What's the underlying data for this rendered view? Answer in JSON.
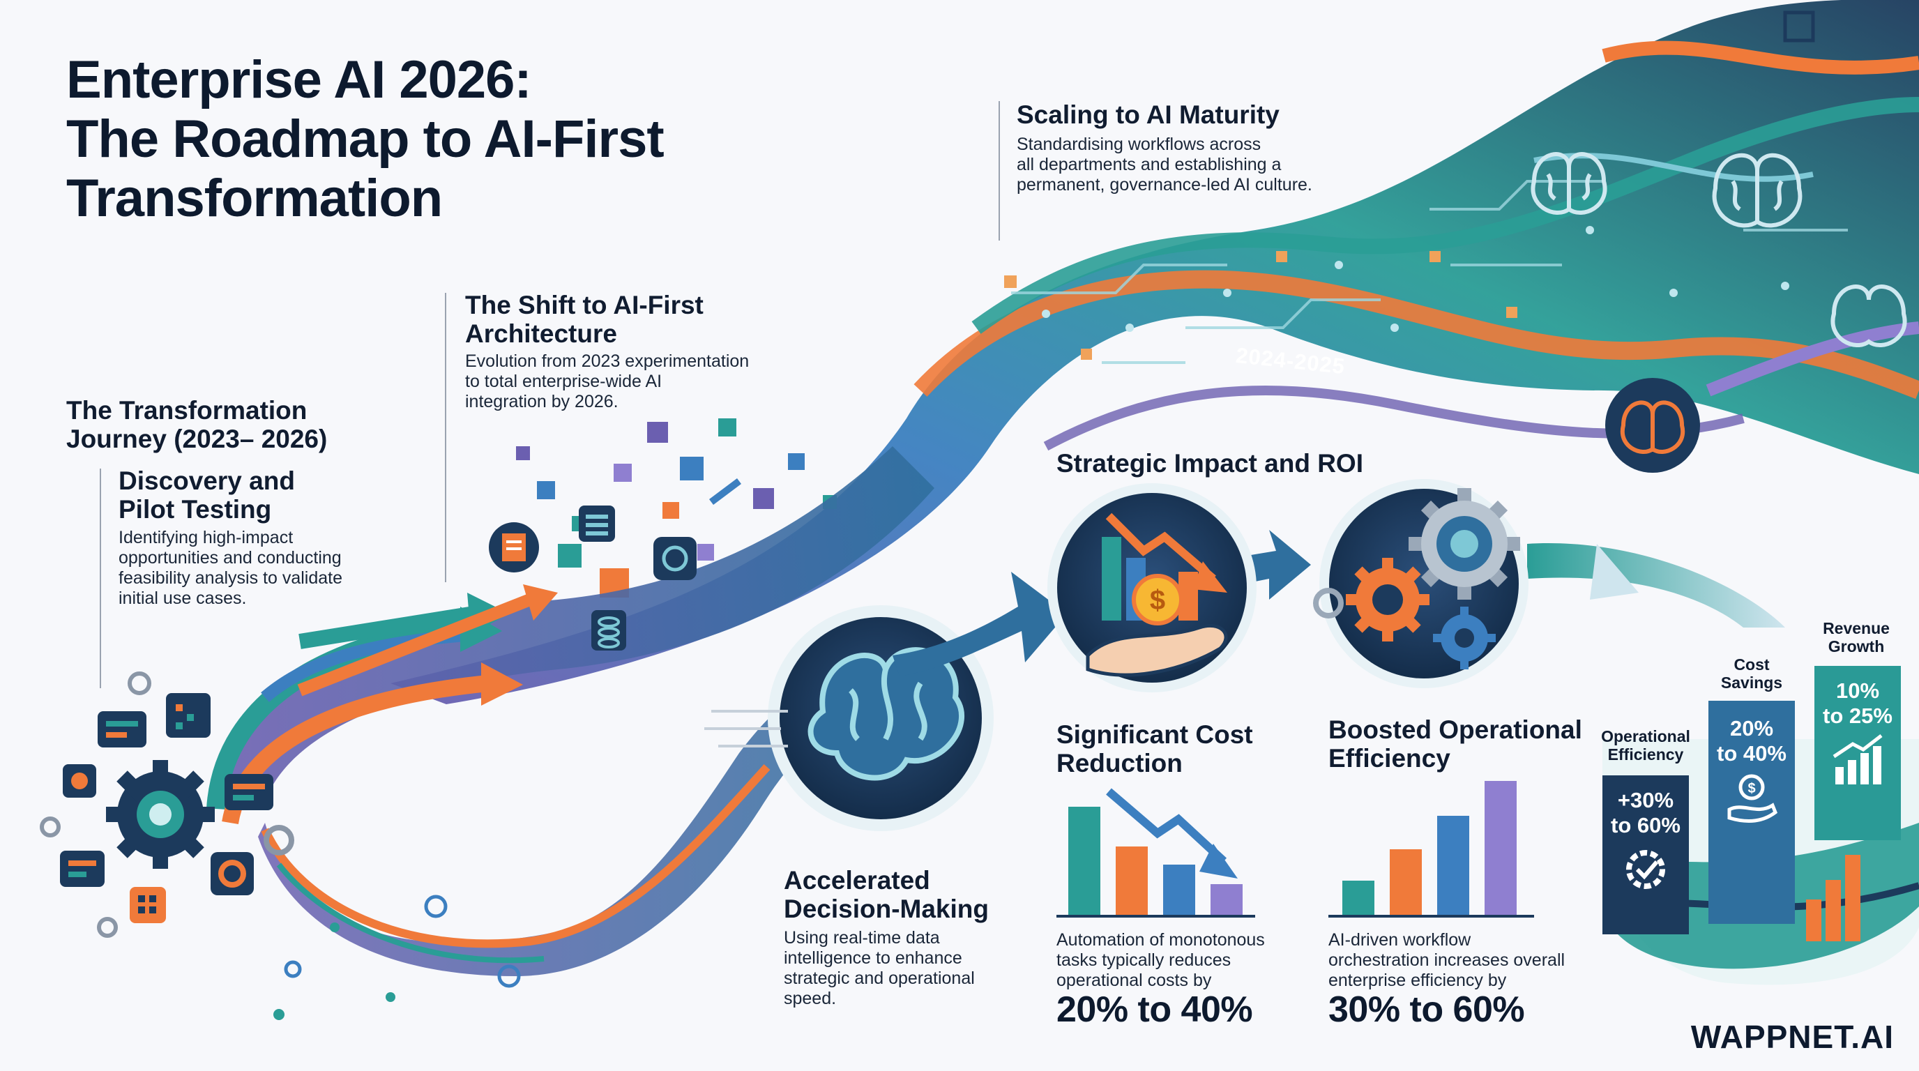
{
  "title": {
    "line1": "Enterprise AI 2026:",
    "line2": "The Roadmap to AI-First",
    "line3": "Transformation"
  },
  "journey": {
    "heading_line1": "The Transformation",
    "heading_line2": "Journey (2023– 2026)",
    "discovery": {
      "title_line1": "Discovery and",
      "title_line2": "Pilot Testing",
      "desc_line1": "Identifying high-impact",
      "desc_line2": "opportunities and conducting",
      "desc_line3": "feasibility analysis to validate",
      "desc_line4": "initial use cases."
    },
    "shift": {
      "title_line1": "The Shift to AI-First",
      "title_line2": "Architecture",
      "desc_line1": "Evolution from 2023 experimentation",
      "desc_line2": "to total enterprise-wide AI",
      "desc_line3": "integration by 2026."
    },
    "scaling": {
      "title": "Scaling to AI Maturity",
      "desc_line1": "Standardising workflows across",
      "desc_line2": "all departments and establishing a",
      "desc_line3": "permanent, governance-led AI culture."
    },
    "year_label": "2024-2025"
  },
  "impact": {
    "heading": "Strategic Impact and ROI",
    "decision": {
      "title_line1": "Accelerated",
      "title_line2": "Decision-Making",
      "desc_line1": "Using real-time data",
      "desc_line2": "intelligence to enhance",
      "desc_line3": "strategic and operational",
      "desc_line4": "speed."
    },
    "cost": {
      "title_line1": "Significant Cost",
      "title_line2": "Reduction",
      "desc_line1": "Automation of monotonous",
      "desc_line2": "tasks typically reduces",
      "desc_line3": "operational costs by",
      "value": "20% to 40%"
    },
    "efficiency": {
      "title_line1": "Boosted Operational",
      "title_line2": "Efficiency",
      "desc_line1": "AI-driven workflow",
      "desc_line2": "orchestration increases overall",
      "desc_line3": "enterprise efficiency by",
      "value": "30% to 60%"
    }
  },
  "metrics": [
    {
      "label_line1": "Operational",
      "label_line2": "Efficiency",
      "val_line1": "+30%",
      "val_line2": "to 60%",
      "color": "#1c3a5c",
      "icon": "gear-check-icon"
    },
    {
      "label_line1": "Cost",
      "label_line2": "Savings",
      "val_line1": "20%",
      "val_line2": "to 40%",
      "color": "#2f6f9e",
      "icon": "hand-coin-icon"
    },
    {
      "label_line1": "Revenue",
      "label_line2": "Growth",
      "val_line1": "10%",
      "val_line2": "to 25%",
      "color": "#2a9a96",
      "icon": "growth-chart-icon"
    }
  ],
  "brand": {
    "name": "WAPPNET.AI"
  },
  "colors": {
    "navy": "#1c3a5c",
    "teal": "#2a9d96",
    "orange": "#f07a3a",
    "purple": "#6b5fb0",
    "blue": "#3c7fc0"
  }
}
